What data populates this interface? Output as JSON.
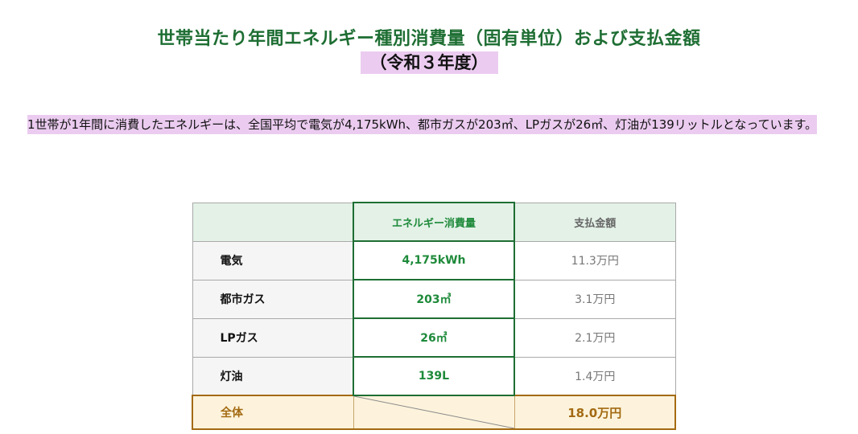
{
  "title": "世帯当たり年間エネルギー種別消費量（固有単位）および支払金額",
  "subtitle": "（令和３年度）",
  "description": "1世帯が1年間に消費したエネルギーは、全国平均で電気が4,175kWh、都市ガスが203㎥、LPガスが26㎥、灯油が139リットルとなっています。",
  "table": {
    "headers": {
      "blank": "",
      "energy": "エネルギー消費量",
      "payment": "支払金額"
    },
    "rows": [
      {
        "label": "電気",
        "energy": "4,175kWh",
        "payment": "11.3万円"
      },
      {
        "label": "都市ガス",
        "energy": "203㎥",
        "payment": "3.1万円"
      },
      {
        "label": "LPガス",
        "energy": "26㎥",
        "payment": "2.1万円"
      },
      {
        "label": "灯油",
        "energy": "139L",
        "payment": "1.4万円"
      }
    ],
    "total": {
      "label": "全体",
      "payment": "18.0万円"
    }
  },
  "colors": {
    "title_green": "#1e6e33",
    "energy_green": "#1e8a3a",
    "highlight": "#ebccf0",
    "total_brown": "#a36a12",
    "total_bg": "#fdf3dc"
  }
}
